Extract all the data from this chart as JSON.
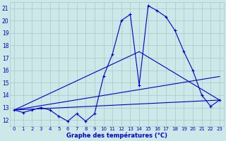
{
  "xlabel": "Graphe des températures (°C)",
  "bg_color": "#cce8e8",
  "grid_color": "#aac8c8",
  "line_color": "#0000cc",
  "xlim": [
    -0.5,
    23.5
  ],
  "ylim": [
    11.5,
    21.5
  ],
  "yticks": [
    12,
    13,
    14,
    15,
    16,
    17,
    18,
    19,
    20,
    21
  ],
  "xticks": [
    0,
    1,
    2,
    3,
    4,
    5,
    6,
    7,
    8,
    9,
    10,
    11,
    12,
    13,
    14,
    15,
    16,
    17,
    18,
    19,
    20,
    21,
    22,
    23
  ],
  "series": [
    {
      "x": [
        0,
        1,
        2,
        3,
        4,
        5,
        6,
        7,
        8,
        9,
        10,
        11,
        12,
        13,
        14,
        15,
        16,
        17,
        18,
        19,
        20,
        21,
        22,
        23
      ],
      "y": [
        12.8,
        12.6,
        12.8,
        13.0,
        12.8,
        12.3,
        11.9,
        12.5,
        11.9,
        12.5,
        15.5,
        17.3,
        20.0,
        20.5,
        14.8,
        21.2,
        20.8,
        20.3,
        19.2,
        17.5,
        16.0,
        14.0,
        13.1,
        13.6
      ],
      "marker": true
    },
    {
      "x": [
        0,
        14,
        23
      ],
      "y": [
        12.8,
        17.5,
        13.6
      ],
      "marker": false
    },
    {
      "x": [
        0,
        23
      ],
      "y": [
        12.8,
        15.5
      ],
      "marker": false
    },
    {
      "x": [
        0,
        23
      ],
      "y": [
        12.8,
        13.6
      ],
      "marker": false
    }
  ]
}
